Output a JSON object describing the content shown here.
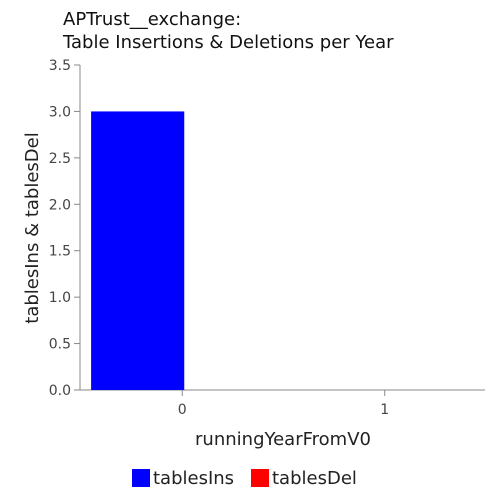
{
  "chart_data": {
    "type": "bar",
    "title_lines": [
      "APTrust__exchange:",
      "Table Insertions & Deletions per Year"
    ],
    "xlabel": "runningYearFromV0",
    "ylabel": "tablesIns & tablesDel",
    "categories": [
      "0",
      "1"
    ],
    "series": [
      {
        "name": "tablesIns",
        "color": "#0000ff",
        "values": [
          3,
          0
        ]
      },
      {
        "name": "tablesDel",
        "color": "#ff0000",
        "values": [
          0,
          0
        ]
      }
    ],
    "ylim": [
      0,
      3.5
    ],
    "yticks": [
      0,
      0.5,
      1,
      1.5,
      2,
      2.5,
      3,
      3.5
    ],
    "ytick_labels": [
      "0.0",
      "0.5",
      "1.0",
      "1.5",
      "2.0",
      "2.5",
      "3.0",
      "3.5"
    ],
    "legend_position": "bottom-center"
  }
}
